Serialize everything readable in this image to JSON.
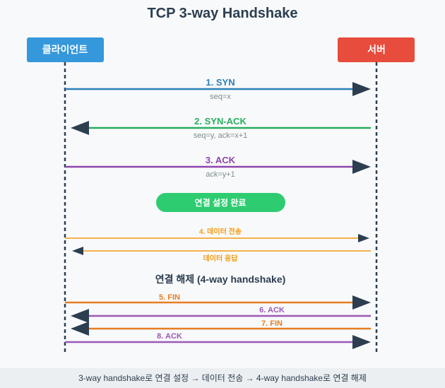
{
  "title": "TCP 3-way Handshake",
  "participants": {
    "client": {
      "label": "클라이언트",
      "color": "#3498db"
    },
    "server": {
      "label": "서버",
      "color": "#e74c3c"
    }
  },
  "messages": [
    {
      "label": "1. SYN",
      "detail": "seq=x",
      "direction": "client-to-server",
      "color": "#2980b9"
    },
    {
      "label": "2. SYN-ACK",
      "detail": "seq=y, ack=x+1",
      "direction": "server-to-client",
      "color": "#27ae60"
    },
    {
      "label": "3. ACK",
      "detail": "ack=y+1",
      "direction": "client-to-server",
      "color": "#8e44ad"
    },
    {
      "label": "4. 데이터 전송",
      "direction": "client-to-server",
      "color": "#f39c12"
    },
    {
      "label": "데이터 응답",
      "direction": "server-to-client",
      "color": "#f39c12"
    },
    {
      "label": "5. FIN",
      "direction": "client-to-server",
      "color": "#e67e22"
    },
    {
      "label": "6. ACK",
      "direction": "server-to-client",
      "color": "#9b59b6"
    },
    {
      "label": "7. FIN",
      "direction": "server-to-client",
      "color": "#e67e22"
    },
    {
      "label": "8. ACK",
      "direction": "client-to-server",
      "color": "#9b59b6"
    }
  ],
  "established_badge": {
    "label": "연결 설정 완료",
    "color": "#2ecc71"
  },
  "teardown_title": "연결 해제 (4-way handshake)",
  "footer": "3-way handshake로 연결 설정 → 데이터 전송 → 4-way handshake로 연결 해제"
}
